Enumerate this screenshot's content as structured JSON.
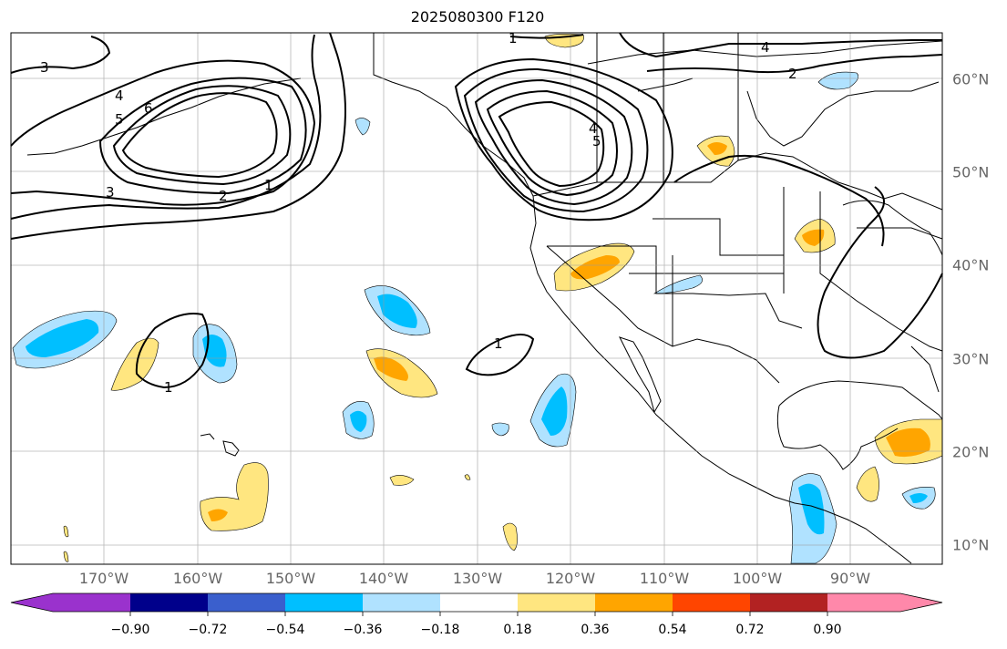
{
  "title": "2025080300 F120",
  "map": {
    "lon_ticks": [
      "170°W",
      "160°W",
      "150°W",
      "140°W",
      "130°W",
      "120°W",
      "110°W",
      "100°W",
      "90°W"
    ],
    "lat_ticks": [
      "60°N",
      "50°N",
      "40°N",
      "30°N",
      "20°N",
      "10°N"
    ],
    "contour_labels": [
      "3",
      "4",
      "5",
      "6",
      "3",
      "2",
      "1",
      "1",
      "1",
      "1",
      "4",
      "2",
      "4",
      "5"
    ]
  },
  "colorbar": {
    "tick_labels": [
      "−0.90",
      "−0.72",
      "−0.54",
      "−0.36",
      "−0.18",
      "0.18",
      "0.36",
      "0.54",
      "0.72",
      "0.90"
    ],
    "colors": [
      "#9a32cd",
      "#00008b",
      "#3a5fcd",
      "#00bfff",
      "#b0e2ff",
      "#ffffff",
      "#ffe680",
      "#ffa500",
      "#ff4500",
      "#b22222",
      "#ff88aa"
    ]
  }
}
